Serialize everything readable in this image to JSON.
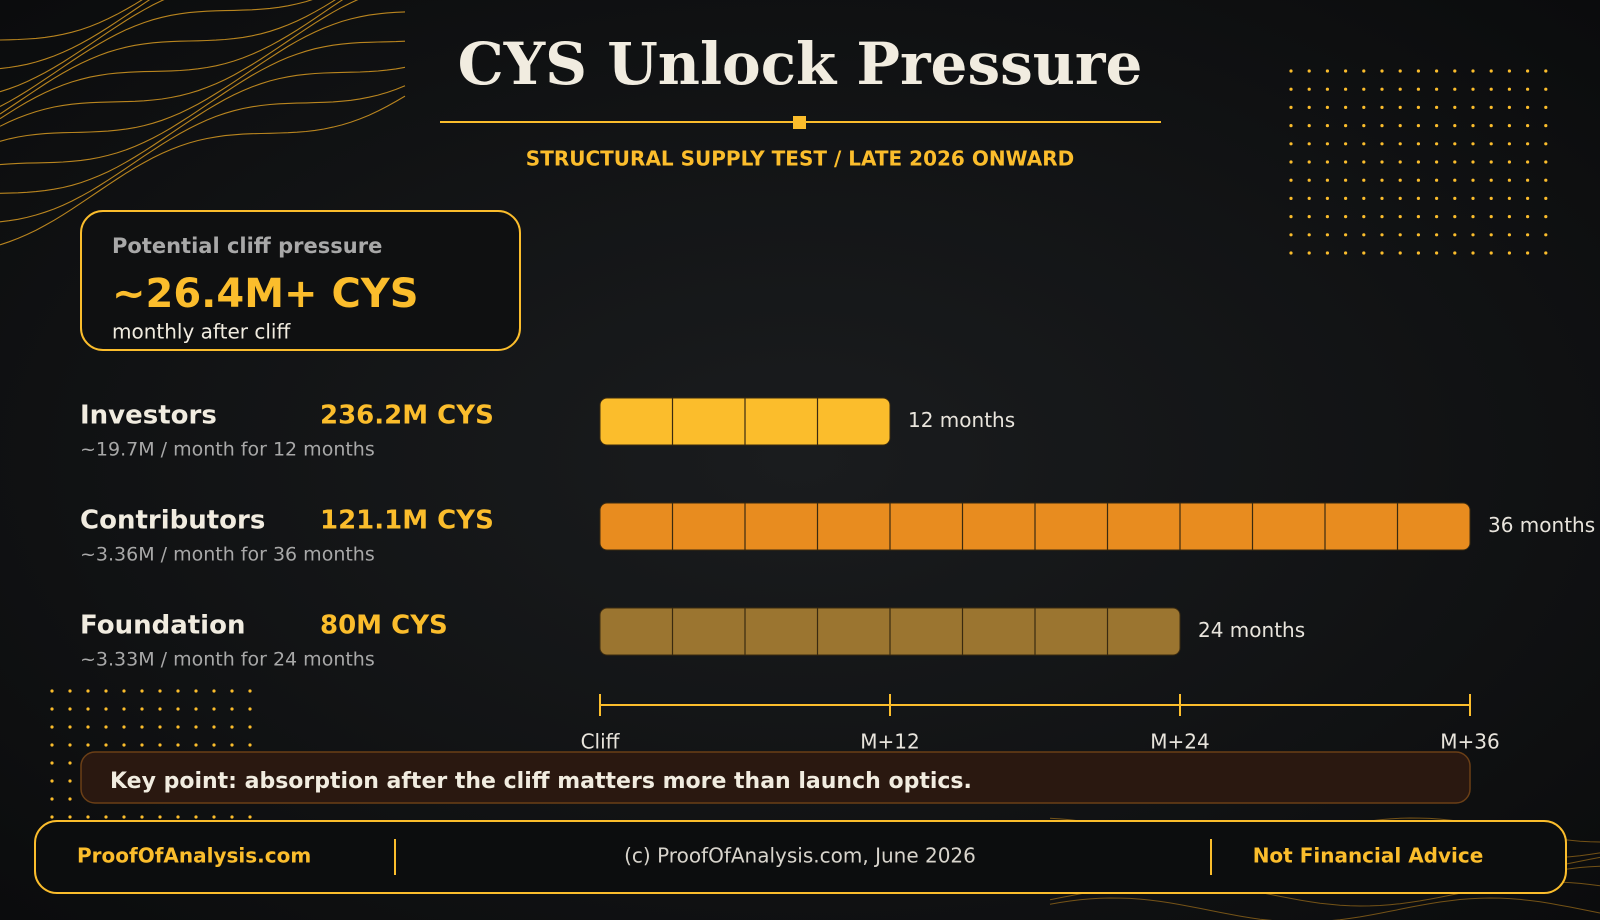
{
  "title": "CYS Unlock Pressure",
  "subtitle": "STRUCTURAL SUPPLY TEST / LATE 2026 ONWARD",
  "callout": {
    "label": "Potential cliff pressure",
    "value": "~26.4M+ CYS",
    "note": "monthly after cliff"
  },
  "chart_data": {
    "type": "bar",
    "orientation": "horizontal",
    "categories": [
      "Investors",
      "Contributors",
      "Foundation"
    ],
    "amounts": [
      "236.2M CYS",
      "121.1M CYS",
      "80M CYS"
    ],
    "details": [
      "~19.7M / month for 12 months",
      "~3.36M / month for 36 months",
      "~3.33M / month for 24 months"
    ],
    "values": [
      12,
      36,
      24
    ],
    "value_labels": [
      "12 months",
      "36 months",
      "24 months"
    ],
    "colors": [
      "#fbbd2c",
      "#e88c1f",
      "#9b7530"
    ],
    "xlim": [
      0,
      36
    ],
    "xticks": [
      {
        "value": 0,
        "label": "Cliff"
      },
      {
        "value": 12,
        "label": "M+12"
      },
      {
        "value": 24,
        "label": "M+24"
      },
      {
        "value": 36,
        "label": "M+36"
      }
    ]
  },
  "key_point": "Key point: absorption after the cliff matters more than launch optics.",
  "footer": {
    "left": "ProofOfAnalysis.com",
    "center": "(c) ProofOfAnalysis.com, June 2026",
    "right": "Not Financial Advice"
  }
}
